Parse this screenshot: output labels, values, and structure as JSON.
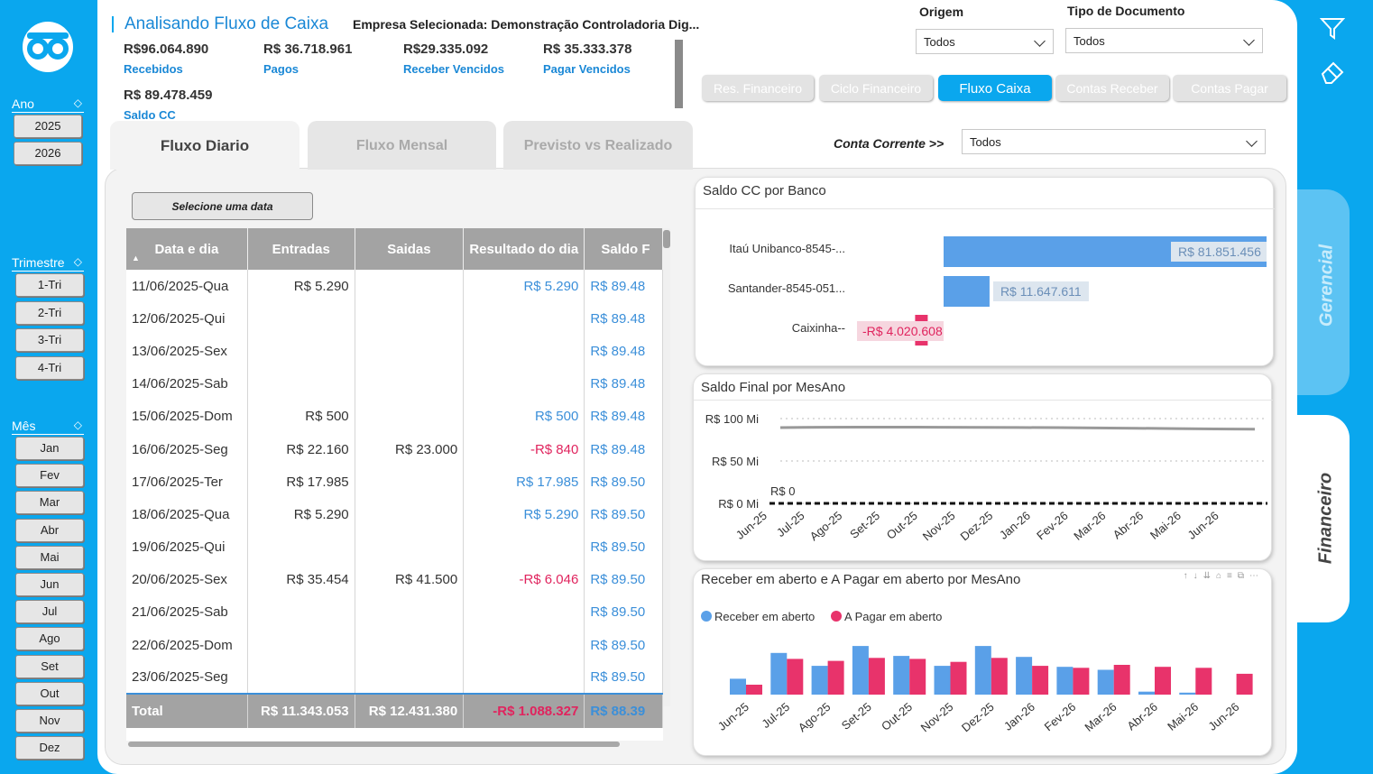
{
  "sidebar": {
    "ano_label": "Ano",
    "anos": [
      "2025",
      "2026"
    ],
    "trimestre_label": "Trimestre",
    "trimestres": [
      "1-Tri",
      "2-Tri",
      "3-Tri",
      "4-Tri"
    ],
    "mes_label": "Mês",
    "meses": [
      "Jan",
      "Fev",
      "Mar",
      "Abr",
      "Mai",
      "Jun",
      "Jul",
      "Ago",
      "Set",
      "Out",
      "Nov",
      "Dez"
    ]
  },
  "header": {
    "title": "Analisando Fluxo de Caixa",
    "empresa": "Empresa Selecionada: Demonstração Controladoria Dig...",
    "kpis": [
      {
        "value": "R$96.064.890",
        "label": "Recebidos"
      },
      {
        "value": "R$ 36.718.961",
        "label": "Pagos"
      },
      {
        "value": "R$29.335.092",
        "label": "Receber Vencidos"
      },
      {
        "value": "R$ 35.333.378",
        "label": "Pagar Vencidos"
      },
      {
        "value": "R$ 89.478.459",
        "label": "Saldo CC"
      }
    ]
  },
  "filters": {
    "origem_label": "Origem",
    "origem_value": "Todos",
    "tipo_label": "Tipo de Documento",
    "tipo_value": "Todos",
    "conta_label": "Conta Corrente >>",
    "conta_value": "Todos"
  },
  "nav": [
    "Res. Financeiro",
    "Ciclo Financeiro",
    "Fluxo Caixa",
    "Contas Receber",
    "Contas Pagar"
  ],
  "tabs": [
    "Fluxo Diario",
    "Fluxo Mensal",
    "Previsto vs Realizado"
  ],
  "select_date": "Selecione uma data",
  "table": {
    "headers": [
      "Data e dia",
      "Entradas",
      "Saidas",
      "Resultado do dia",
      "Saldo F"
    ],
    "rows": [
      [
        "11/06/2025-Qua",
        "R$ 5.290",
        "",
        "R$ 5.290",
        "R$ 89.48"
      ],
      [
        "12/06/2025-Qui",
        "",
        "",
        "",
        "R$ 89.48"
      ],
      [
        "13/06/2025-Sex",
        "",
        "",
        "",
        "R$ 89.48"
      ],
      [
        "14/06/2025-Sab",
        "",
        "",
        "",
        "R$ 89.48"
      ],
      [
        "15/06/2025-Dom",
        "R$ 500",
        "",
        "R$ 500",
        "R$ 89.48"
      ],
      [
        "16/06/2025-Seg",
        "R$ 22.160",
        "R$ 23.000",
        "-R$ 840",
        "R$ 89.48"
      ],
      [
        "17/06/2025-Ter",
        "R$ 17.985",
        "",
        "R$ 17.985",
        "R$ 89.50"
      ],
      [
        "18/06/2025-Qua",
        "R$ 5.290",
        "",
        "R$ 5.290",
        "R$ 89.50"
      ],
      [
        "19/06/2025-Qui",
        "",
        "",
        "",
        "R$ 89.50"
      ],
      [
        "20/06/2025-Sex",
        "R$ 35.454",
        "R$ 41.500",
        "-R$ 6.046",
        "R$ 89.50"
      ],
      [
        "21/06/2025-Sab",
        "",
        "",
        "",
        "R$ 89.50"
      ],
      [
        "22/06/2025-Dom",
        "",
        "",
        "",
        "R$ 89.50"
      ],
      [
        "23/06/2025-Seg",
        "",
        "",
        "",
        "R$ 89.50"
      ]
    ],
    "total": [
      "Total",
      "R$ 11.343.053",
      "R$ 12.431.380",
      "-R$ 1.088.327",
      "R$ 88.39"
    ]
  },
  "side_tabs": {
    "gerencial": "Gerencial",
    "financeiro": "Financeiro"
  },
  "chart_data": [
    {
      "type": "bar",
      "title": "Saldo CC por Banco",
      "orientation": "horizontal",
      "categories": [
        "Itaú Unibanco-8545-...",
        "Santander-8545-051...",
        "Caixinha--"
      ],
      "values": [
        81851456,
        11647611,
        -4020608
      ],
      "labels": [
        "R$ 81.851.456",
        "R$ 11.647.611",
        "-R$ 4.020.608"
      ]
    },
    {
      "type": "line",
      "title": "Saldo Final por MesAno",
      "categories": [
        "Jun-25",
        "Jul-25",
        "Ago-25",
        "Set-25",
        "Out-25",
        "Nov-25",
        "Dez-25",
        "Jan-26",
        "Fev-26",
        "Mar-26",
        "Abr-26",
        "Mai-26",
        "Jun-26"
      ],
      "series": [
        {
          "values": [
            89.4,
            89.8,
            89.9,
            89.9,
            89.8,
            89.6,
            89.5,
            89.3,
            89.0,
            88.6,
            88.2,
            87.8,
            87.5
          ]
        },
        {
          "values": [
            0,
            0,
            0,
            0,
            0,
            0,
            0,
            0,
            0,
            0,
            0,
            0,
            0
          ]
        }
      ],
      "yticks": [
        "R$ 100 Mi",
        "R$ 50 Mi",
        "R$ 0 Mi"
      ],
      "ylim": [
        0,
        100
      ],
      "annotation": "R$ 0"
    },
    {
      "type": "bar",
      "title": "Receber em aberto e A Pagar em aberto por MesAno",
      "categories": [
        "Jun-25",
        "Jul-25",
        "Ago-25",
        "Set-25",
        "Out-25",
        "Nov-25",
        "Dez-25",
        "Jan-26",
        "Fev-26",
        "Mar-26",
        "Abr-26",
        "Mai-26",
        "Jun-26"
      ],
      "series": [
        {
          "name": "Receber em aberto",
          "color": "#5aa0e8",
          "values": [
            16,
            42,
            29,
            49,
            39,
            29,
            49,
            38,
            28,
            25,
            3,
            2,
            0
          ]
        },
        {
          "name": "A Pagar em aberto",
          "color": "#e8336b",
          "values": [
            10,
            36,
            34,
            37,
            36,
            33,
            37,
            29,
            27,
            30,
            28,
            27,
            21
          ]
        }
      ]
    }
  ]
}
